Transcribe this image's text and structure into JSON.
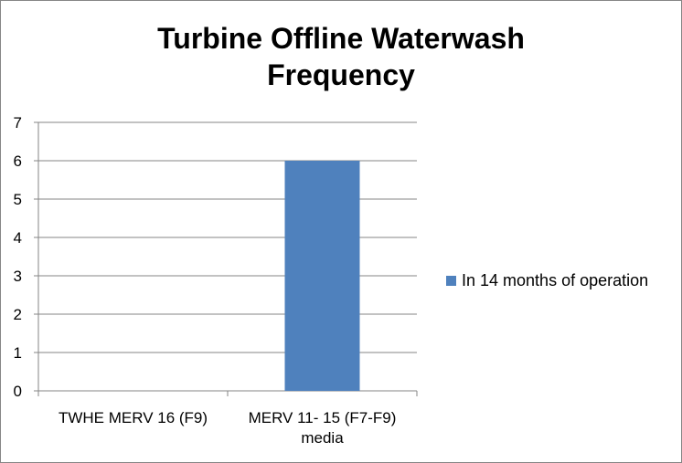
{
  "chart_data": {
    "type": "bar",
    "title": [
      "Turbine Offline Waterwash",
      "Frequency"
    ],
    "categories": [
      [
        "TWHE MERV 16 (F9)"
      ],
      [
        "MERV 11- 15 (F7-F9)",
        "media"
      ]
    ],
    "series": [
      {
        "name": "In 14 months of operation",
        "values": [
          0,
          6
        ],
        "color": "#4F81BD"
      }
    ],
    "ylim": [
      0,
      7
    ],
    "yticks": [
      0,
      1,
      2,
      3,
      4,
      5,
      6,
      7
    ],
    "grid": true,
    "legend_position": "right"
  }
}
